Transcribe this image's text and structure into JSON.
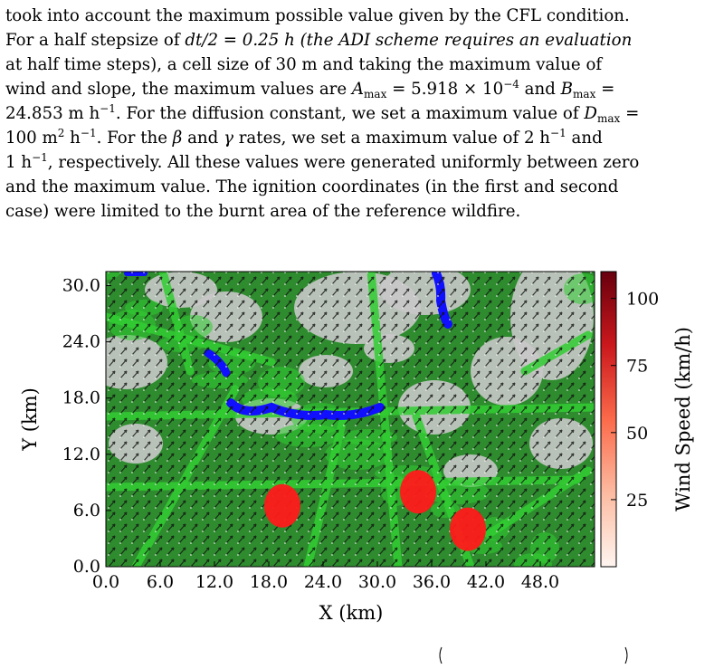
{
  "paragraph": {
    "l1": "took into account the maximum possible value given by the CFL condition.",
    "l2a": "For a half stepsize of ",
    "l2b": "dt/2 = 0.25 h (the ADI scheme requires an evaluation",
    "l3": "at half time steps), a cell size of 30 m and taking the maximum value of",
    "l4a": "wind and slope, the maximum values are ",
    "l4b": "A",
    "l4c": "max",
    "l4d": " = 5.918 × 10",
    "l4e": "−4",
    "l4f": " and ",
    "l4g": "B",
    "l4h": "max",
    "l4i": " =",
    "l5a": "24.853 m h",
    "l5b": "−1",
    "l5c": ". For the diffusion constant, we set a maximum value of ",
    "l5d": "D",
    "l5e": "max",
    "l5f": " =",
    "l6a": "100 m",
    "l6b": "2",
    "l6c": " h",
    "l6d": "−1",
    "l6e": ". For the ",
    "l6f": "β",
    "l6g": " and ",
    "l6h": "γ",
    "l6i": " rates, we set a maximum value of 2 h",
    "l6j": "−1",
    "l6k": " and",
    "l7a": "1 h",
    "l7b": "−1",
    "l7c": ", respectively. All these values were generated uniformly between zero",
    "l8": "and the maximum value. The ignition coordinates (in the first and second",
    "l9": "case) were limited to the burnt area of the reference wildfire."
  },
  "figure": {
    "x_ticks": [
      "0.0",
      "6.0",
      "12.0",
      "18.0",
      "24.0",
      "30.0",
      "36.0",
      "42.0",
      "48.0"
    ],
    "y_ticks": [
      "0.0",
      "6.0",
      "12.0",
      "18.0",
      "24.0",
      "30.0"
    ],
    "x_label": "X (km)",
    "y_label": "Y (km)",
    "colorbar_label": "Wind Speed (km/h)",
    "colorbar_ticks": [
      "25",
      "50",
      "75",
      "100"
    ],
    "colors": {
      "forest": "#2e8b2e",
      "grass": "#32cd32",
      "rock": "#c8c8c8",
      "water": "#1010ff",
      "fire": "#ff1a1a"
    }
  },
  "chart_data": {
    "type": "heatmap",
    "x_range": [
      0,
      54
    ],
    "y_range": [
      0,
      31.5
    ],
    "colorbar_range": [
      0,
      110
    ],
    "ignition_points": [
      {
        "x": 19.5,
        "y": 6.5
      },
      {
        "x": 34.5,
        "y": 8.0
      },
      {
        "x": 40.0,
        "y": 4.0
      }
    ]
  }
}
